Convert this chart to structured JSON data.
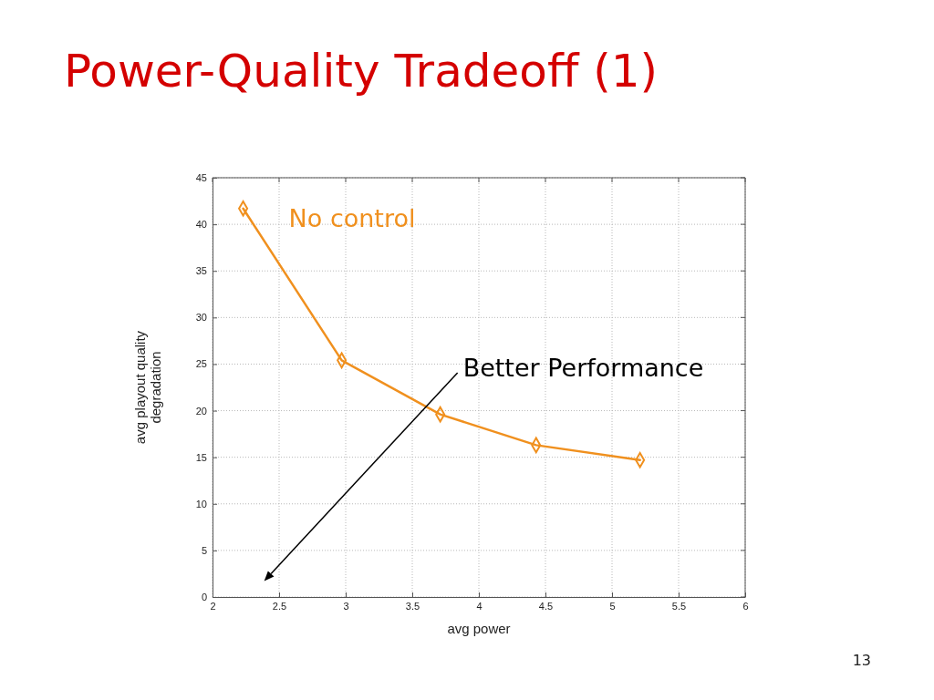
{
  "chart_data": {
    "type": "line",
    "title": "Power-Quality Tradeoff (1)",
    "xlabel": "avg power",
    "ylabel": "avg playout quality\ndegradation",
    "series": [
      {
        "name": "No control",
        "color": "#f0901e",
        "x": [
          2.23,
          2.97,
          3.71,
          4.43,
          5.21
        ],
        "values": [
          41.7,
          25.4,
          19.6,
          16.3,
          14.7
        ]
      }
    ],
    "xlim": [
      2,
      6
    ],
    "xticks": [
      2,
      2.5,
      3,
      3.5,
      4,
      4.5,
      5,
      5.5,
      6
    ],
    "ylim": [
      0,
      45
    ],
    "yticks": [
      0,
      5,
      10,
      15,
      20,
      25,
      30,
      35,
      40,
      45
    ],
    "grid": true,
    "marker": "diamond",
    "line_style": "solid",
    "legend": false,
    "annotations": [
      "Better Performance",
      "13"
    ]
  }
}
